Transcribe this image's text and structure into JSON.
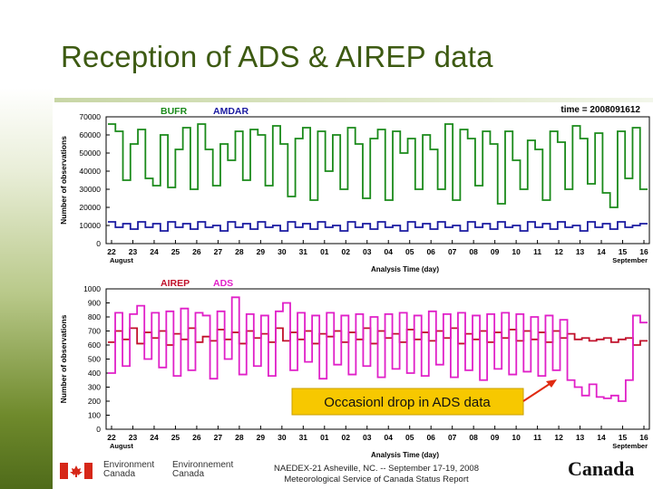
{
  "slide": {
    "title": "Reception of ADS & AIREP data",
    "annotation": "Occasionl drop in ADS data",
    "footer_line1": "NAEDEX-21 Asheville, NC. -- September 17-19, 2008",
    "footer_line2": "Meteorological Service of Canada Status Report",
    "dept_en_1": "Environment",
    "dept_en_2": "Canada",
    "dept_fr_1": "Environnement",
    "dept_fr_2": "Canada",
    "wordmark": "Canada",
    "colors": {
      "accent": "#3d5a12",
      "bufr": "#1a8a1a",
      "amdar": "#1a1aa0",
      "airep": "#c0102a",
      "ads": "#e020c8",
      "annotation_bg": "#f7c800",
      "arrow": "#e02a10"
    }
  },
  "chart_data": [
    {
      "type": "line",
      "timestamp": "time = 2008091612",
      "ylabel": "Number of observations",
      "xlabel": "Analysis Time (day)",
      "month_start": "August",
      "month_end": "September",
      "x_ticks": [
        "22",
        "23",
        "24",
        "25",
        "26",
        "27",
        "28",
        "29",
        "30",
        "31",
        "01",
        "02",
        "03",
        "04",
        "05",
        "06",
        "07",
        "08",
        "09",
        "10",
        "11",
        "12",
        "13",
        "14",
        "15",
        "16"
      ],
      "ylim": [
        0,
        70000
      ],
      "y_ticks": [
        0,
        10000,
        20000,
        30000,
        40000,
        50000,
        60000,
        70000
      ],
      "series": [
        {
          "name": "BUFR",
          "color": "#1a8a1a",
          "values": [
            66000,
            62000,
            35000,
            55000,
            63000,
            36000,
            32000,
            60000,
            31000,
            52000,
            64000,
            30000,
            66000,
            52000,
            32000,
            55000,
            46000,
            62000,
            35000,
            63000,
            60000,
            32000,
            65000,
            55000,
            26000,
            58000,
            64000,
            24000,
            62000,
            40000,
            60000,
            30000,
            64000,
            55000,
            25000,
            58000,
            63000,
            24000,
            62000,
            50000,
            58000,
            30000,
            60000,
            52000,
            30000,
            66000,
            24000,
            63000,
            58000,
            32000,
            62000,
            55000,
            22000,
            62000,
            46000,
            30000,
            57000,
            52000,
            24000,
            62000,
            56000,
            30000,
            65000,
            58000,
            33000,
            61000,
            28000,
            20000,
            62000,
            36000,
            64000,
            30000
          ]
        },
        {
          "name": "AMDAR",
          "color": "#1a1aa0",
          "values": [
            12000,
            9000,
            11000,
            8000,
            12000,
            9000,
            11000,
            7000,
            12000,
            9000,
            11000,
            8000,
            12000,
            9000,
            10000,
            7000,
            12000,
            9000,
            11000,
            8000,
            12000,
            9000,
            10000,
            7000,
            12000,
            9000,
            11000,
            8000,
            12000,
            9000,
            10000,
            7000,
            12000,
            9000,
            11000,
            8000,
            12000,
            9000,
            10000,
            7000,
            12000,
            9000,
            11000,
            8000,
            12000,
            9000,
            10000,
            7000,
            12000,
            9000,
            11000,
            8000,
            12000,
            9000,
            10000,
            7000,
            12000,
            9000,
            11000,
            8000,
            12000,
            9000,
            10000,
            7000,
            12000,
            9000,
            11000,
            8000,
            12000,
            9000,
            10000,
            11000
          ]
        }
      ]
    },
    {
      "type": "line",
      "ylabel": "Number of observations",
      "xlabel": "Analysis Time (day)",
      "month_start": "August",
      "month_end": "September",
      "x_ticks": [
        "22",
        "23",
        "24",
        "25",
        "26",
        "27",
        "28",
        "29",
        "30",
        "31",
        "01",
        "02",
        "03",
        "04",
        "05",
        "06",
        "07",
        "08",
        "09",
        "10",
        "11",
        "12",
        "13",
        "14",
        "15",
        "16"
      ],
      "ylim": [
        0,
        1000
      ],
      "y_ticks": [
        0,
        100,
        200,
        300,
        400,
        500,
        600,
        700,
        800,
        900,
        1000
      ],
      "series": [
        {
          "name": "AIREP",
          "color": "#c0102a",
          "values": [
            620,
            700,
            640,
            720,
            610,
            690,
            650,
            700,
            600,
            680,
            640,
            720,
            620,
            660,
            630,
            710,
            640,
            690,
            610,
            700,
            650,
            680,
            620,
            720,
            630,
            690,
            640,
            700,
            610,
            680,
            660,
            700,
            620,
            690,
            640,
            720,
            610,
            700,
            650,
            680,
            620,
            710,
            640,
            690,
            630,
            700,
            650,
            720,
            610,
            680,
            640,
            700,
            620,
            690,
            650,
            710,
            630,
            700,
            640,
            690,
            620,
            700,
            650,
            680,
            640,
            650,
            630,
            640,
            650,
            620,
            640,
            650,
            600,
            630
          ]
        },
        {
          "name": "ADS",
          "color": "#e020c8",
          "values": [
            400,
            830,
            450,
            820,
            880,
            500,
            830,
            440,
            840,
            380,
            860,
            420,
            830,
            810,
            360,
            840,
            500,
            940,
            390,
            820,
            450,
            810,
            380,
            840,
            900,
            420,
            830,
            480,
            810,
            360,
            830,
            460,
            810,
            390,
            820,
            450,
            800,
            370,
            820,
            430,
            830,
            400,
            810,
            380,
            840,
            460,
            820,
            370,
            830,
            420,
            810,
            350,
            820,
            430,
            830,
            390,
            820,
            410,
            800,
            380,
            810,
            420,
            780,
            350,
            300,
            240,
            320,
            230,
            220,
            240,
            200,
            350,
            810,
            760
          ]
        }
      ]
    }
  ]
}
